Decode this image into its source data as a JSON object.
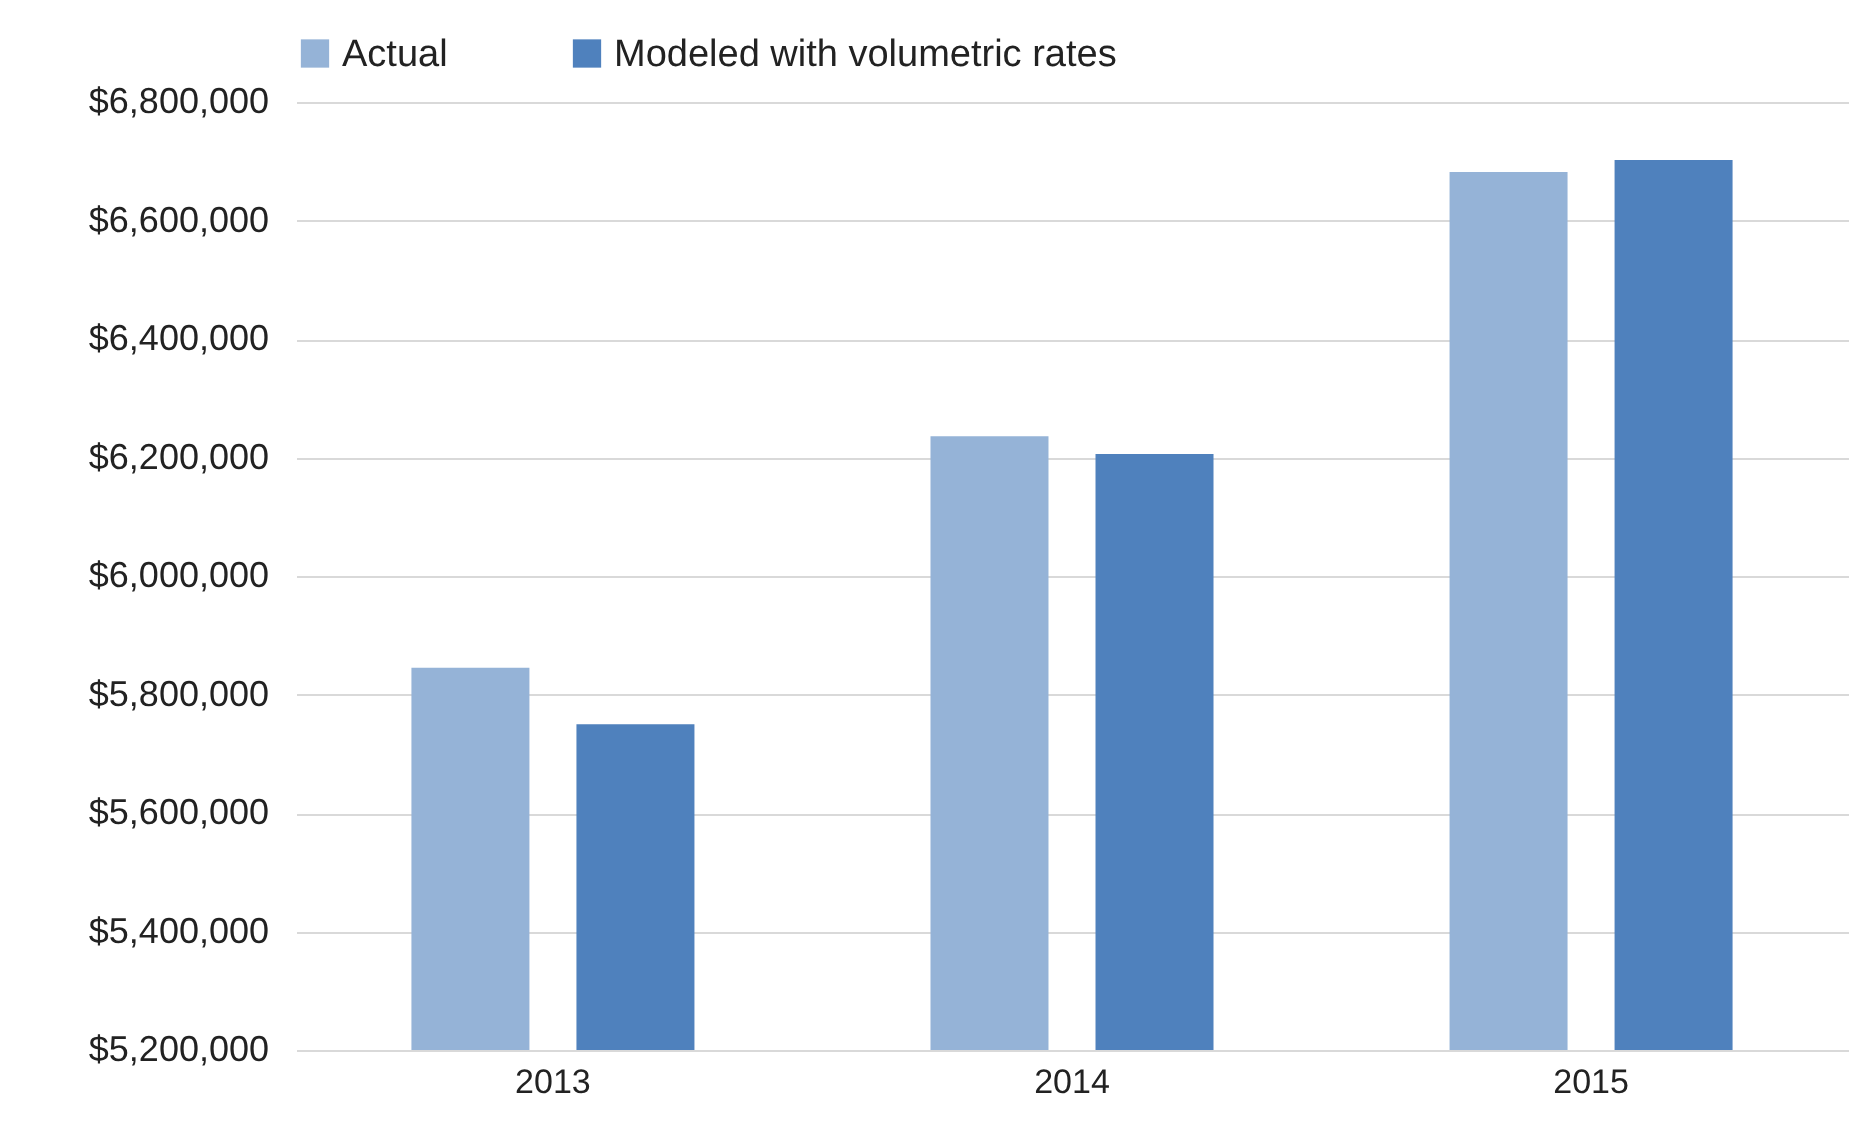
{
  "chart_data": {
    "type": "bar",
    "categories": [
      "2013",
      "2014",
      "2015"
    ],
    "series": [
      {
        "name": "Actual",
        "color": "#95b3d7",
        "values": [
          5845000,
          6236000,
          6682000
        ]
      },
      {
        "name": "Modeled with volumetric rates",
        "color": "#4f81bd",
        "values": [
          5750000,
          6206000,
          6702000
        ]
      }
    ],
    "ylim": [
      5200000,
      6800000
    ],
    "yticks": [
      {
        "value": 5200000,
        "label": "$5,200,000"
      },
      {
        "value": 5400000,
        "label": "$5,400,000"
      },
      {
        "value": 5600000,
        "label": "$5,600,000"
      },
      {
        "value": 5800000,
        "label": "$5,800,000"
      },
      {
        "value": 6000000,
        "label": "$6,000,000"
      },
      {
        "value": 6200000,
        "label": "$6,200,000"
      },
      {
        "value": 6400000,
        "label": "$6,400,000"
      },
      {
        "value": 6600000,
        "label": "$6,600,000"
      },
      {
        "value": 6800000,
        "label": "$6,800,000"
      }
    ],
    "grid": "y",
    "legend": "top"
  }
}
